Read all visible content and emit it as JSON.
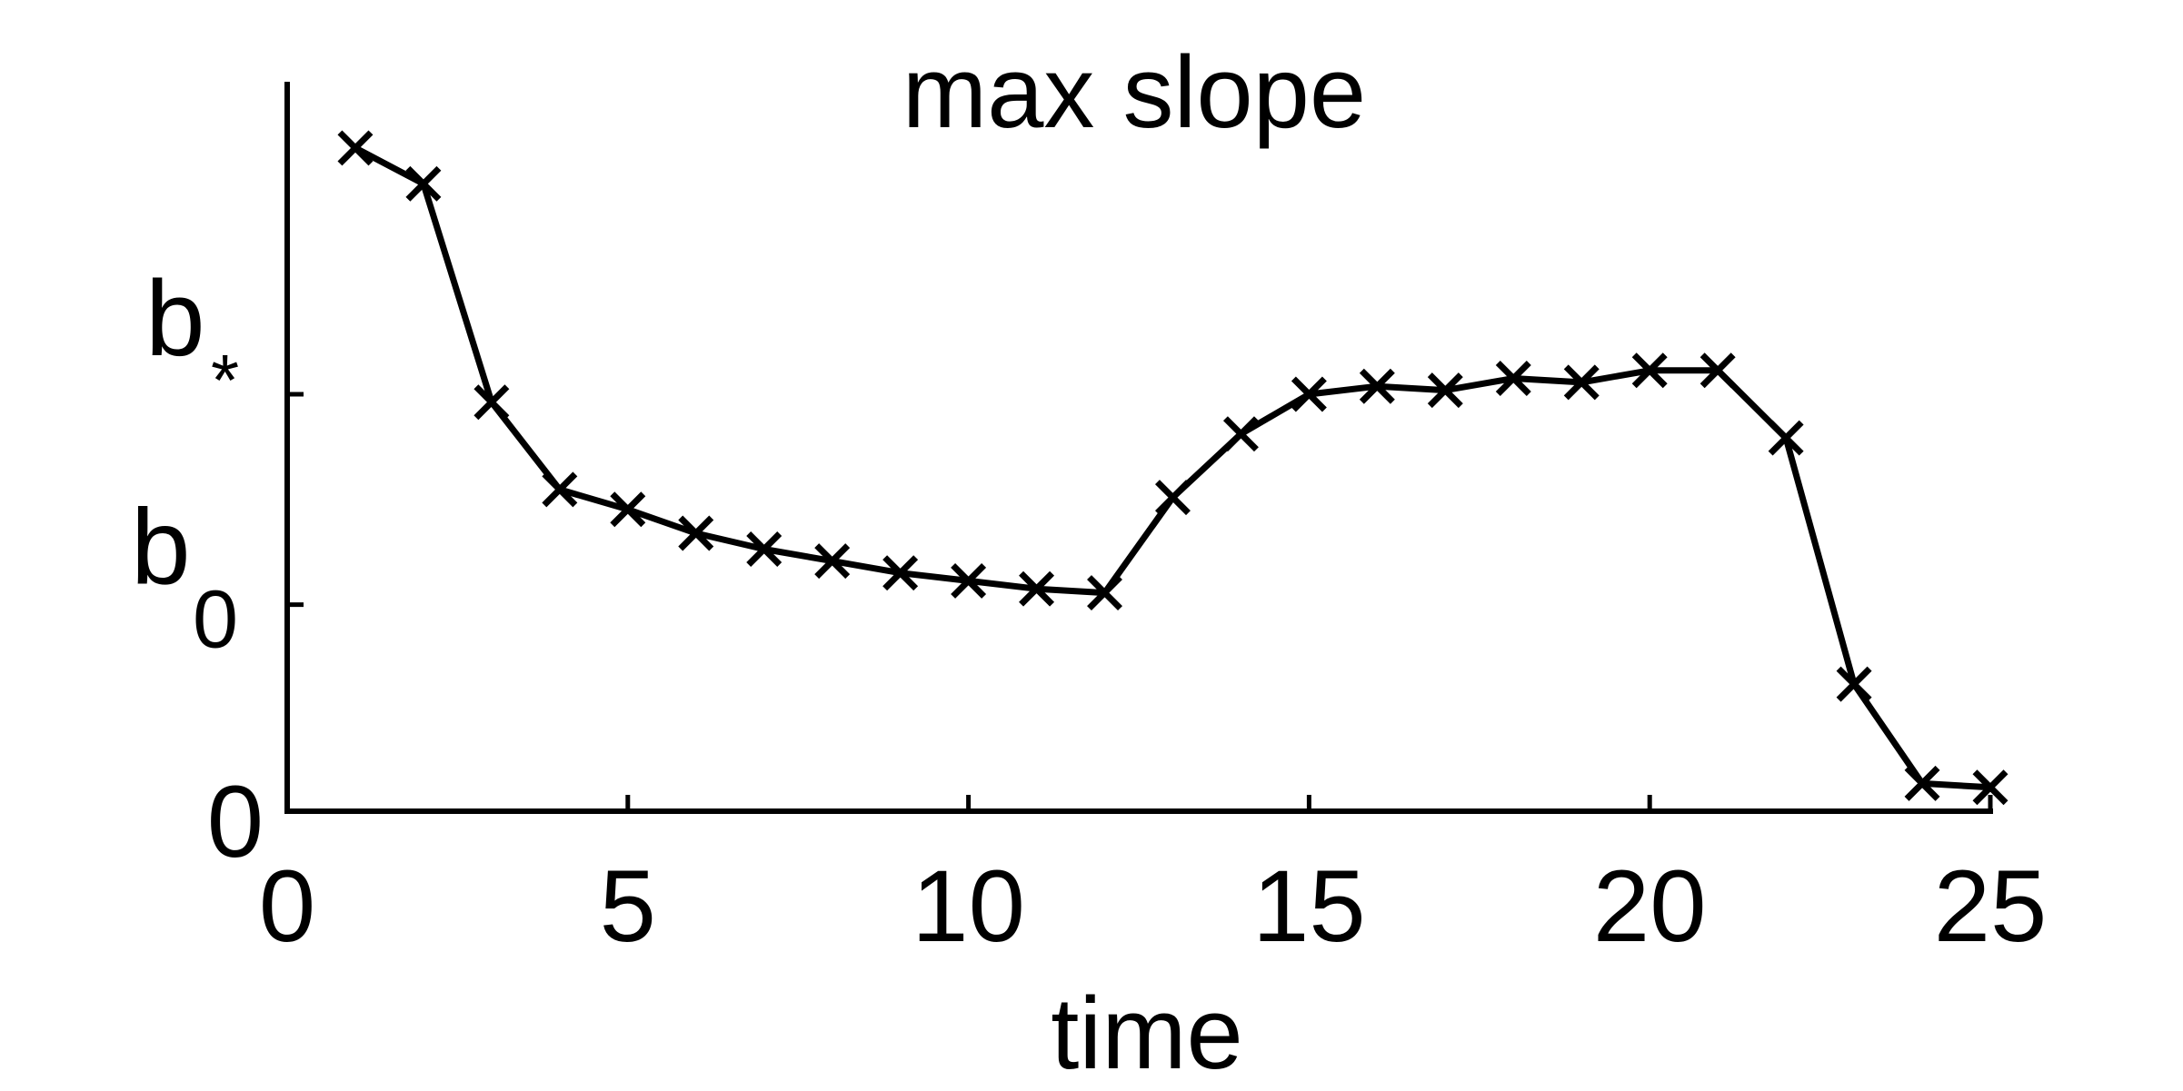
{
  "chart_data": {
    "type": "line",
    "title": "max slope",
    "xlabel": "time",
    "ylabel": "",
    "xlim": [
      0,
      25
    ],
    "ylim": [
      0,
      1.83
    ],
    "x_ticks": [
      0,
      5,
      10,
      15,
      20,
      25
    ],
    "x_tick_labels": [
      "0",
      "5",
      "10",
      "15",
      "20",
      "25"
    ],
    "y_ticks": [
      {
        "value": 0,
        "label": "0",
        "sub": ""
      },
      {
        "value": 0.52,
        "label": "b",
        "sub": "0"
      },
      {
        "value": 1.05,
        "label": "b",
        "sub": "*"
      }
    ],
    "grid": false,
    "marker": "x",
    "series": [
      {
        "x": [
          1,
          2,
          3,
          4,
          5,
          6,
          7,
          8,
          9,
          10,
          11,
          12,
          13,
          14,
          15,
          16,
          17,
          18,
          19,
          20,
          21,
          22,
          23,
          24,
          25
        ],
        "values": [
          1.67,
          1.58,
          1.03,
          0.81,
          0.76,
          0.7,
          0.66,
          0.63,
          0.6,
          0.58,
          0.56,
          0.55,
          0.79,
          0.95,
          1.05,
          1.07,
          1.06,
          1.09,
          1.08,
          1.11,
          1.11,
          0.94,
          0.32,
          0.07,
          0.06
        ]
      }
    ]
  }
}
